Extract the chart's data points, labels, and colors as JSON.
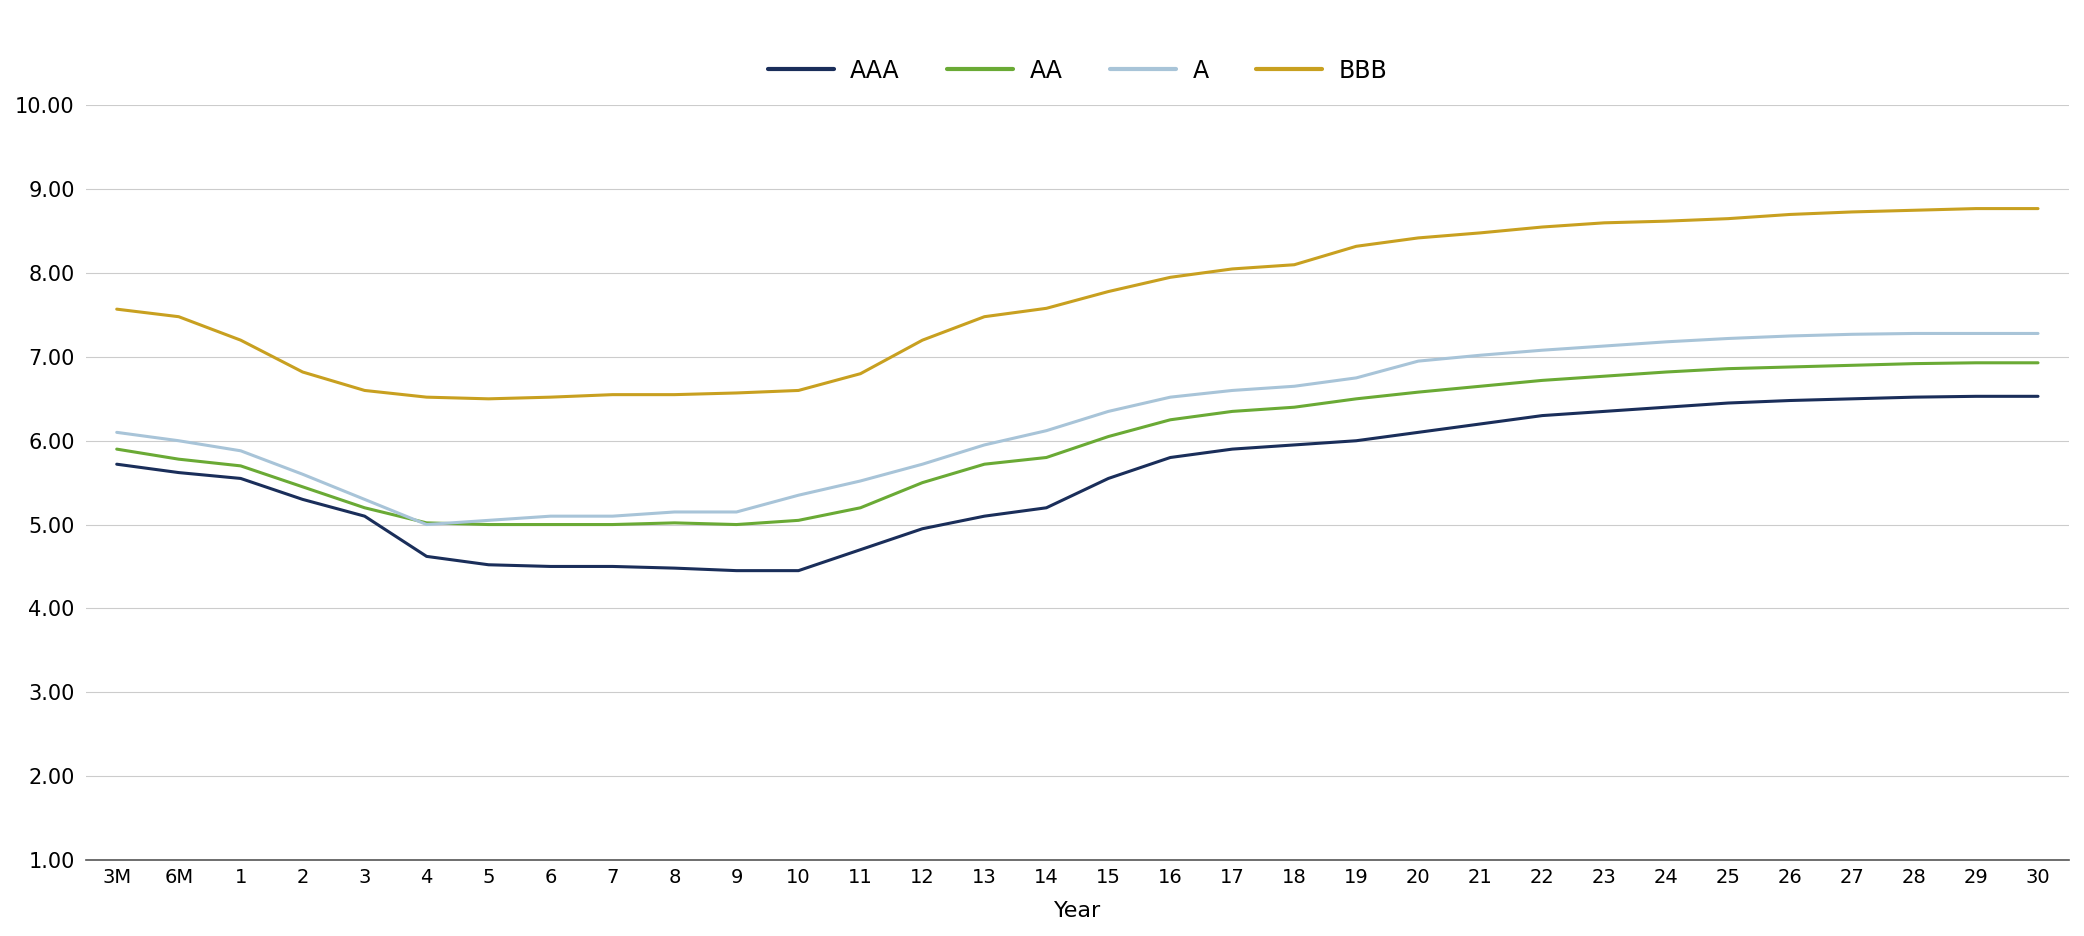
{
  "x_labels": [
    "3M",
    "6M",
    "1",
    "2",
    "3",
    "4",
    "5",
    "6",
    "7",
    "8",
    "9",
    "10",
    "11",
    "12",
    "13",
    "14",
    "15",
    "16",
    "17",
    "18",
    "19",
    "20",
    "21",
    "22",
    "23",
    "24",
    "25",
    "26",
    "27",
    "28",
    "29",
    "30"
  ],
  "AAA": [
    5.72,
    5.62,
    5.55,
    5.3,
    5.1,
    4.62,
    4.52,
    4.5,
    4.5,
    4.48,
    4.45,
    4.45,
    4.7,
    4.95,
    5.1,
    5.2,
    5.55,
    5.8,
    5.9,
    5.95,
    6.0,
    6.1,
    6.2,
    6.3,
    6.35,
    6.4,
    6.45,
    6.48,
    6.5,
    6.52,
    6.53,
    6.53
  ],
  "AA": [
    5.9,
    5.78,
    5.7,
    5.45,
    5.2,
    5.02,
    5.0,
    5.0,
    5.0,
    5.02,
    5.0,
    5.05,
    5.2,
    5.5,
    5.72,
    5.8,
    6.05,
    6.25,
    6.35,
    6.4,
    6.5,
    6.58,
    6.65,
    6.72,
    6.77,
    6.82,
    6.86,
    6.88,
    6.9,
    6.92,
    6.93,
    6.93
  ],
  "A": [
    6.1,
    6.0,
    5.88,
    5.6,
    5.3,
    5.0,
    5.05,
    5.1,
    5.1,
    5.15,
    5.15,
    5.35,
    5.52,
    5.72,
    5.95,
    6.12,
    6.35,
    6.52,
    6.6,
    6.65,
    6.75,
    6.95,
    7.02,
    7.08,
    7.13,
    7.18,
    7.22,
    7.25,
    7.27,
    7.28,
    7.28,
    7.28
  ],
  "BBB": [
    7.57,
    7.48,
    7.2,
    6.82,
    6.6,
    6.52,
    6.5,
    6.52,
    6.55,
    6.55,
    6.57,
    6.6,
    6.8,
    7.2,
    7.48,
    7.58,
    7.78,
    7.95,
    8.05,
    8.1,
    8.32,
    8.42,
    8.48,
    8.55,
    8.6,
    8.62,
    8.65,
    8.7,
    8.73,
    8.75,
    8.77,
    8.77
  ],
  "colors": {
    "AAA": "#1a2e5a",
    "AA": "#6aaa35",
    "A": "#a8c4d8",
    "BBB": "#c8a020"
  },
  "ylim": [
    1.0,
    10.0
  ],
  "yticks": [
    1.0,
    2.0,
    3.0,
    4.0,
    5.0,
    6.0,
    7.0,
    8.0,
    9.0,
    10.0
  ],
  "xlabel": "Year",
  "background_color": "#ffffff",
  "grid_color": "#cccccc",
  "line_width": 2.2
}
